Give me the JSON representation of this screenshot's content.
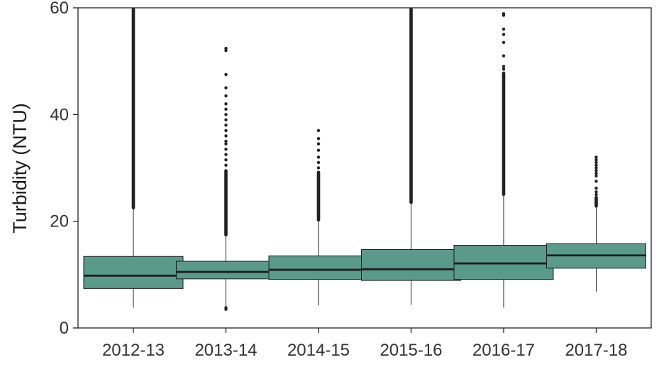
{
  "chart_data": {
    "type": "box",
    "title": "",
    "xlabel": "",
    "ylabel": "Turbidity (NTU)",
    "ylim": [
      0,
      60
    ],
    "yticks": [
      0,
      20,
      40,
      60
    ],
    "categories": [
      "2012-13",
      "2013-14",
      "2014-15",
      "2015-16",
      "2016-17",
      "2017-18"
    ],
    "fill_color": "#5a9a8a",
    "stroke_color": "#1f1f1f",
    "grid": false,
    "legend": "none",
    "boxes": [
      {
        "category": "2012-13",
        "whisker_low": 3.8,
        "q1": 7.4,
        "median": 9.8,
        "q3": 13.4,
        "whisker_high": 22.5
      },
      {
        "category": "2013-14",
        "whisker_low": 4.0,
        "q1": 9.2,
        "median": 10.5,
        "q3": 12.5,
        "whisker_high": 17.4
      },
      {
        "category": "2014-15",
        "whisker_low": 4.2,
        "q1": 9.1,
        "median": 10.9,
        "q3": 13.5,
        "whisker_high": 20.2
      },
      {
        "category": "2015-16",
        "whisker_low": 4.3,
        "q1": 8.9,
        "median": 11.0,
        "q3": 14.7,
        "whisker_high": 23.5
      },
      {
        "category": "2016-17",
        "whisker_low": 3.8,
        "q1": 9.1,
        "median": 12.1,
        "q3": 15.5,
        "whisker_high": 25.0
      },
      {
        "category": "2017-18",
        "whisker_low": 6.8,
        "q1": 11.2,
        "median": 13.6,
        "q3": 15.8,
        "whisker_high": 22.8
      }
    ],
    "outliers": [
      {
        "category": "2012-13",
        "dense": [
          [
            22.5,
            59.8
          ]
        ],
        "points": []
      },
      {
        "category": "2013-14",
        "dense": [
          [
            17.4,
            29.5
          ]
        ],
        "points": [
          3.5,
          3.8,
          30.5,
          31.5,
          32.5,
          33.5,
          34.5,
          35.0,
          36.0,
          37.0,
          38.0,
          39.0,
          40.0,
          41.0,
          42.0,
          43.5,
          45.0,
          47.5,
          52.0,
          52.4
        ]
      },
      {
        "category": "2014-15",
        "dense": [
          [
            20.2,
            29.2
          ]
        ],
        "points": [
          30.0,
          31.0,
          32.0,
          33.3,
          34.5,
          35.5,
          37.0
        ]
      },
      {
        "category": "2015-16",
        "dense": [
          [
            23.5,
            59.8
          ]
        ],
        "points": []
      },
      {
        "category": "2016-17",
        "dense": [
          [
            25.0,
            47.8
          ]
        ],
        "points": [
          48.5,
          49.0,
          51.0,
          53.5,
          55.0,
          56.0,
          58.6,
          58.9
        ]
      },
      {
        "category": "2017-18",
        "dense": [
          [
            22.8,
            24.5
          ]
        ],
        "points": [
          25.0,
          25.5,
          26.2,
          27.5,
          28.5,
          29.0,
          29.5,
          30.0,
          30.5,
          31.0,
          31.5,
          32.0
        ]
      }
    ]
  }
}
